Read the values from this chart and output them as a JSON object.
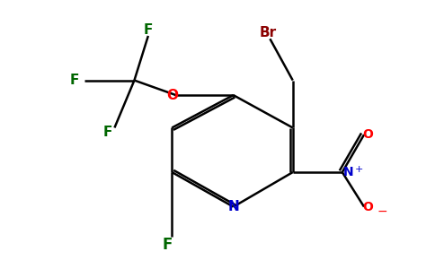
{
  "bg_color": "#ffffff",
  "atom_colors": {
    "C": "#000000",
    "N": "#0000cc",
    "O": "#ff0000",
    "F": "#006600",
    "Br": "#8b0000",
    "default": "#000000"
  },
  "bond_color": "#000000",
  "bond_width": 1.8,
  "figsize": [
    4.84,
    3.0
  ],
  "dpi": 100
}
